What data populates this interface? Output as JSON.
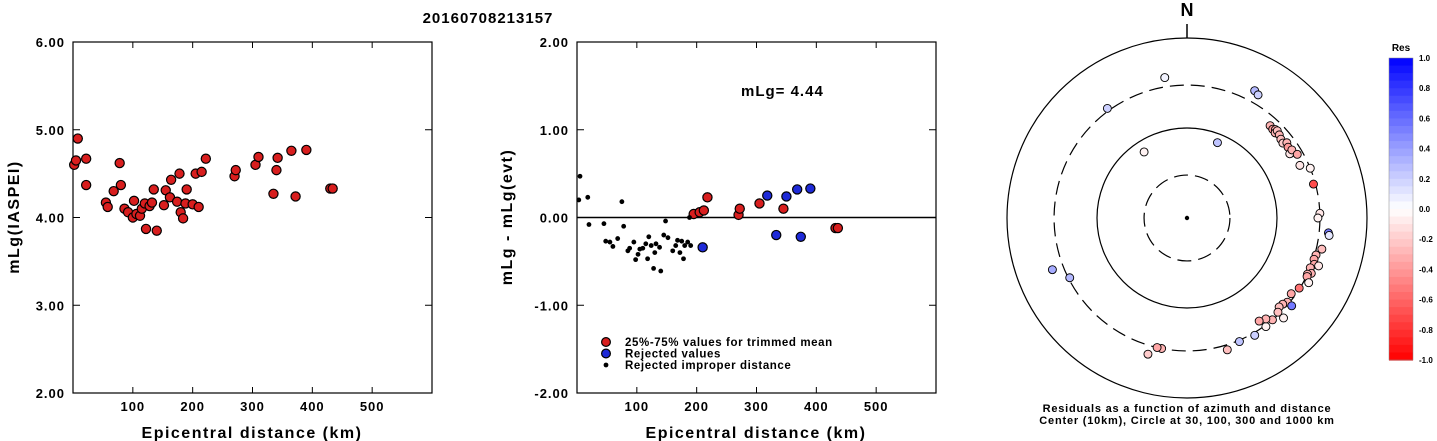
{
  "title": "20160708213157",
  "chart_data": [
    {
      "type": "scatter",
      "xlabel": "Epicentral distance (km)",
      "ylabel": "mLg(IASPEI)",
      "xlim": [
        0,
        600
      ],
      "ylim": [
        2.0,
        6.0
      ],
      "xticks": [
        "100",
        "200",
        "300",
        "400",
        "500"
      ],
      "yticks": [
        "2.00",
        "3.00",
        "4.00",
        "5.00",
        "6.00"
      ],
      "grid": false,
      "series": [
        {
          "color": "#d81e1e",
          "points": [
            [
              2,
              4.6
            ],
            [
              5,
              4.65
            ],
            [
              8,
              4.9
            ],
            [
              22,
              4.67
            ],
            [
              22,
              4.37
            ],
            [
              55,
              4.17
            ],
            [
              58,
              4.12
            ],
            [
              68,
              4.3
            ],
            [
              78,
              4.62
            ],
            [
              80,
              4.37
            ],
            [
              86,
              4.1
            ],
            [
              92,
              4.06
            ],
            [
              100,
              4.0
            ],
            [
              102,
              4.19
            ],
            [
              106,
              4.04
            ],
            [
              112,
              4.02
            ],
            [
              115,
              4.1
            ],
            [
              120,
              4.16
            ],
            [
              122,
              3.87
            ],
            [
              128,
              4.13
            ],
            [
              132,
              4.17
            ],
            [
              135,
              4.32
            ],
            [
              140,
              3.85
            ],
            [
              152,
              4.14
            ],
            [
              155,
              4.31
            ],
            [
              162,
              4.23
            ],
            [
              164,
              4.43
            ],
            [
              174,
              4.18
            ],
            [
              178,
              4.5
            ],
            [
              180,
              4.06
            ],
            [
              184,
              3.99
            ],
            [
              188,
              4.16
            ],
            [
              190,
              4.32
            ],
            [
              200,
              4.15
            ],
            [
              205,
              4.5
            ],
            [
              210,
              4.12
            ],
            [
              215,
              4.52
            ],
            [
              222,
              4.67
            ],
            [
              270,
              4.47
            ],
            [
              272,
              4.54
            ],
            [
              305,
              4.6
            ],
            [
              310,
              4.69
            ],
            [
              335,
              4.27
            ],
            [
              340,
              4.54
            ],
            [
              342,
              4.68
            ],
            [
              365,
              4.76
            ],
            [
              372,
              4.24
            ],
            [
              390,
              4.77
            ],
            [
              430,
              4.33
            ],
            [
              434,
              4.33
            ]
          ]
        }
      ]
    },
    {
      "type": "scatter",
      "xlabel": "Epicentral distance (km)",
      "ylabel": "mLg - mLg(evt)",
      "xlim": [
        0,
        600
      ],
      "ylim": [
        -2.0,
        2.0
      ],
      "xticks": [
        "100",
        "200",
        "300",
        "400",
        "500"
      ],
      "yticks": [
        "-2.00",
        "-1.00",
        "0.00",
        "1.00",
        "2.00"
      ],
      "annotation": "mLg= 4.44",
      "reference_line": 0,
      "grid": false,
      "series": [
        {
          "name": "25%-75% values for trimmed mean",
          "color": "#d81e1e",
          "points": [
            [
              195,
              0.04
            ],
            [
              205,
              0.06
            ],
            [
              212,
              0.08
            ],
            [
              218,
              0.23
            ],
            [
              270,
              0.03
            ],
            [
              272,
              0.1
            ],
            [
              305,
              0.16
            ],
            [
              345,
              0.1
            ],
            [
              432,
              -0.12
            ],
            [
              436,
              -0.12
            ]
          ]
        },
        {
          "name": "Rejected values",
          "color": "#1e2ad8",
          "points": [
            [
              210,
              -0.34
            ],
            [
              318,
              0.25
            ],
            [
              333,
              -0.2
            ],
            [
              350,
              0.24
            ],
            [
              368,
              0.32
            ],
            [
              374,
              -0.22
            ],
            [
              390,
              0.33
            ]
          ]
        },
        {
          "name": "Rejected improper distance",
          "color": "#000000",
          "points": [
            [
              3,
              0.2
            ],
            [
              5,
              0.47
            ],
            [
              18,
              0.23
            ],
            [
              20,
              -0.08
            ],
            [
              45,
              -0.07
            ],
            [
              48,
              -0.27
            ],
            [
              55,
              -0.28
            ],
            [
              60,
              -0.33
            ],
            [
              68,
              -0.24
            ],
            [
              75,
              0.18
            ],
            [
              78,
              -0.1
            ],
            [
              85,
              -0.38
            ],
            [
              88,
              -0.35
            ],
            [
              95,
              -0.28
            ],
            [
              98,
              -0.48
            ],
            [
              102,
              -0.42
            ],
            [
              105,
              -0.36
            ],
            [
              110,
              -0.35
            ],
            [
              115,
              -0.3
            ],
            [
              118,
              -0.47
            ],
            [
              120,
              -0.22
            ],
            [
              124,
              -0.32
            ],
            [
              128,
              -0.58
            ],
            [
              130,
              -0.4
            ],
            [
              132,
              -0.3
            ],
            [
              138,
              -0.34
            ],
            [
              140,
              -0.61
            ],
            [
              145,
              -0.2
            ],
            [
              148,
              -0.04
            ],
            [
              152,
              -0.23
            ],
            [
              160,
              -0.38
            ],
            [
              165,
              -0.32
            ],
            [
              168,
              -0.26
            ],
            [
              172,
              -0.4
            ],
            [
              175,
              -0.27
            ],
            [
              178,
              -0.47
            ],
            [
              180,
              -0.32
            ],
            [
              185,
              -0.28
            ],
            [
              188,
              0.0
            ],
            [
              190,
              -0.32
            ]
          ]
        }
      ],
      "legend": "bottom-left"
    },
    {
      "type": "scatter",
      "subtype": "polar",
      "north_label": "N",
      "caption_lines": [
        "Residuals as a function of azimuth and distance",
        "Center (10km), Circle at 30, 100, 300 and 1000 km"
      ],
      "colorbar": {
        "title": "Res",
        "ticks": [
          "1.0",
          "0.8",
          "0.6",
          "0.4",
          "0.2",
          "0.0",
          "-0.2",
          "-0.4",
          "-0.6",
          "-0.8",
          "-1.0"
        ],
        "max_color": "#0018ff",
        "zero_color": "#ffffff",
        "min_color": "#ff0000"
      },
      "points": [
        {
          "az": 324,
          "dist": 320,
          "res": 0.2
        },
        {
          "az": 351,
          "dist": 380,
          "res": 0.05
        },
        {
          "az": 28,
          "dist": 400,
          "res": 0.3
        },
        {
          "az": 30,
          "dist": 380,
          "res": 0.2
        },
        {
          "az": 42,
          "dist": 240,
          "res": -0.3
        },
        {
          "az": 44,
          "dist": 235,
          "res": -0.4
        },
        {
          "az": 45,
          "dist": 245,
          "res": -0.35
        },
        {
          "az": 46,
          "dist": 230,
          "res": -0.3
        },
        {
          "az": 46,
          "dist": 248,
          "res": -0.25
        },
        {
          "az": 48,
          "dist": 240,
          "res": -0.3
        },
        {
          "az": 50,
          "dist": 230,
          "res": -0.25
        },
        {
          "az": 52,
          "dist": 225,
          "res": -0.2
        },
        {
          "az": 53,
          "dist": 245,
          "res": -0.3
        },
        {
          "az": 55,
          "dist": 235,
          "res": -0.4
        },
        {
          "az": 58,
          "dist": 230,
          "res": -0.2
        },
        {
          "az": 58,
          "dist": 222,
          "res": -0.1
        },
        {
          "az": 57,
          "dist": 245,
          "res": -0.3
        },
        {
          "az": 60,
          "dist": 260,
          "res": -0.35
        },
        {
          "az": 65,
          "dist": 242,
          "res": -0.1
        },
        {
          "az": 68,
          "dist": 300,
          "res": -0.05
        },
        {
          "az": 75,
          "dist": 285,
          "res": -0.7
        },
        {
          "az": 88,
          "dist": 300,
          "res": -0.1
        },
        {
          "az": 96,
          "dist": 380,
          "res": 0.55
        },
        {
          "az": 97,
          "dist": 390,
          "res": 0.1
        },
        {
          "az": 103,
          "dist": 345,
          "res": -0.25
        },
        {
          "az": 106,
          "dist": 310,
          "res": -0.3
        },
        {
          "az": 108,
          "dist": 305,
          "res": -0.35
        },
        {
          "az": 110,
          "dist": 320,
          "res": -0.35
        },
        {
          "az": 112,
          "dist": 300,
          "res": -0.3
        },
        {
          "az": 114,
          "dist": 325,
          "res": -0.3
        },
        {
          "az": 110,
          "dist": 360,
          "res": -0.1
        },
        {
          "az": 115,
          "dist": 300,
          "res": -0.3
        },
        {
          "az": 116,
          "dist": 305,
          "res": -0.35
        },
        {
          "az": 118,
          "dist": 340,
          "res": -0.05
        },
        {
          "az": 122,
          "dist": 295,
          "res": -0.55
        },
        {
          "az": 126,
          "dist": 270,
          "res": -0.35
        },
        {
          "az": 130,
          "dist": 285,
          "res": -0.3
        },
        {
          "az": 132,
          "dist": 270,
          "res": -0.3
        },
        {
          "az": 134,
          "dist": 265,
          "res": -0.25
        },
        {
          "az": 136,
          "dist": 285,
          "res": -0.25
        },
        {
          "az": 140,
          "dist": 300,
          "res": -0.3
        },
        {
          "az": 144,
          "dist": 310,
          "res": -0.05
        },
        {
          "az": 130,
          "dist": 330,
          "res": 0.55
        },
        {
          "az": 142,
          "dist": 265,
          "res": -0.3
        },
        {
          "az": 145,
          "dist": 250,
          "res": -0.35
        },
        {
          "az": 150,
          "dist": 320,
          "res": 0.2
        },
        {
          "az": 157,
          "dist": 310,
          "res": 0.25
        },
        {
          "az": 163,
          "dist": 340,
          "res": -0.25
        },
        {
          "az": 191,
          "dist": 300,
          "res": -0.3
        },
        {
          "az": 193,
          "dist": 300,
          "res": -0.35
        },
        {
          "az": 196,
          "dist": 375,
          "res": -0.2
        },
        {
          "az": 243,
          "dist": 290,
          "res": 0.3
        },
        {
          "az": 249,
          "dist": 400,
          "res": 0.35
        },
        {
          "az": 22,
          "dist": 80,
          "res": 0.25
        },
        {
          "az": 327,
          "dist": 75,
          "res": -0.05
        },
        {
          "az": 90,
          "dist": 285,
          "res": -0.05
        },
        {
          "az": 136,
          "dist": 350,
          "res": -0.05
        }
      ]
    }
  ]
}
